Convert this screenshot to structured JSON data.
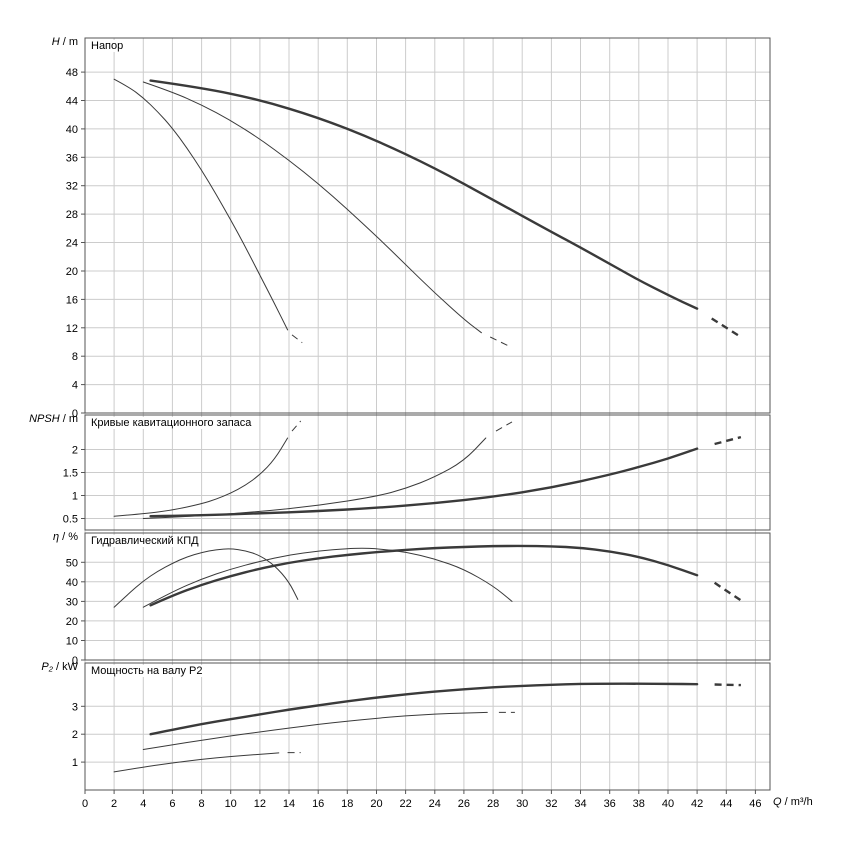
{
  "figure": {
    "background": "#ffffff",
    "grid_color": "#cccccc",
    "axis_color": "#555555",
    "curve_color": "#3a3a3a"
  },
  "xaxis": {
    "label": {
      "sym": "Q",
      "sep": " / ",
      "unit": "m³/h"
    },
    "xlim": [
      0,
      47
    ],
    "ticks": [
      0,
      2,
      4,
      6,
      8,
      10,
      12,
      14,
      16,
      18,
      20,
      22,
      24,
      26,
      28,
      30,
      32,
      34,
      36,
      38,
      40,
      42,
      44,
      46
    ]
  },
  "chart_data": [
    {
      "type": "line",
      "title": "Напор",
      "ylabel": {
        "sym": "H",
        "sep": " / ",
        "unit": "m"
      },
      "ylim": [
        0,
        52.8
      ],
      "yticks": [
        0,
        4,
        8,
        12,
        16,
        20,
        24,
        28,
        32,
        36,
        40,
        44,
        48
      ],
      "grid": true,
      "series": [
        {
          "name": "head-curve-1",
          "stroke_width": 1,
          "solid": [
            [
              2,
              47
            ],
            [
              3,
              45.9
            ],
            [
              4,
              44.4
            ],
            [
              5,
              42.4
            ],
            [
              6,
              40.1
            ],
            [
              7,
              37.3
            ],
            [
              8,
              34.2
            ],
            [
              9,
              30.8
            ],
            [
              10,
              27.2
            ],
            [
              11,
              23.4
            ],
            [
              12,
              19.4
            ],
            [
              13,
              15.4
            ],
            [
              13.9,
              11.7
            ]
          ],
          "dashed": [
            [
              14.2,
              11
            ],
            [
              14.9,
              9.9
            ]
          ]
        },
        {
          "name": "head-curve-2",
          "stroke_width": 1,
          "solid": [
            [
              4,
              46.6
            ],
            [
              6,
              45.2
            ],
            [
              8,
              43.4
            ],
            [
              10,
              41.2
            ],
            [
              12,
              38.6
            ],
            [
              14,
              35.6
            ],
            [
              16,
              32.3
            ],
            [
              18,
              28.7
            ],
            [
              20,
              24.9
            ],
            [
              22,
              20.9
            ],
            [
              24,
              16.9
            ],
            [
              26,
              13.2
            ],
            [
              27.2,
              11.3
            ]
          ],
          "dashed": [
            [
              27.8,
              10.7
            ],
            [
              29.2,
              9.3
            ]
          ]
        },
        {
          "name": "head-curve-3",
          "stroke_width": 2.4,
          "solid": [
            [
              4.5,
              46.8
            ],
            [
              8,
              45.8
            ],
            [
              12,
              44.1
            ],
            [
              16,
              41.6
            ],
            [
              20,
              38.4
            ],
            [
              24,
              34.5
            ],
            [
              28,
              30
            ],
            [
              32,
              25.5
            ],
            [
              34,
              23.3
            ],
            [
              36,
              21
            ],
            [
              38,
              18.7
            ],
            [
              40,
              16.6
            ],
            [
              42,
              14.7
            ]
          ],
          "dashed": [
            [
              43,
              13.3
            ],
            [
              45,
              10.7
            ]
          ]
        }
      ]
    },
    {
      "type": "line",
      "title": "Кривые кавитационного запаса",
      "ylabel": {
        "sym": "NPSH",
        "sep": " / ",
        "unit": "m"
      },
      "ylim": [
        0.25,
        2.75
      ],
      "yticks": [
        0.5,
        1,
        1.5,
        2
      ],
      "grid": true,
      "series": [
        {
          "name": "npsh-curve-1",
          "stroke_width": 1,
          "solid": [
            [
              2,
              0.55
            ],
            [
              4,
              0.6
            ],
            [
              6,
              0.68
            ],
            [
              8,
              0.82
            ],
            [
              9,
              0.92
            ],
            [
              10,
              1.05
            ],
            [
              11,
              1.22
            ],
            [
              12,
              1.45
            ],
            [
              13,
              1.78
            ],
            [
              13.9,
              2.25
            ]
          ],
          "dashed": [
            [
              14.2,
              2.4
            ],
            [
              14.8,
              2.62
            ]
          ]
        },
        {
          "name": "npsh-curve-2",
          "stroke_width": 1,
          "solid": [
            [
              4,
              0.5
            ],
            [
              8,
              0.56
            ],
            [
              12,
              0.65
            ],
            [
              16,
              0.78
            ],
            [
              20,
              0.98
            ],
            [
              22,
              1.15
            ],
            [
              24,
              1.4
            ],
            [
              26,
              1.75
            ],
            [
              27.5,
              2.25
            ]
          ],
          "dashed": [
            [
              28.2,
              2.4
            ],
            [
              29.3,
              2.6
            ]
          ]
        },
        {
          "name": "npsh-curve-3",
          "stroke_width": 2.4,
          "solid": [
            [
              4.5,
              0.55
            ],
            [
              8,
              0.57
            ],
            [
              12,
              0.61
            ],
            [
              16,
              0.66
            ],
            [
              20,
              0.73
            ],
            [
              24,
              0.83
            ],
            [
              28,
              0.97
            ],
            [
              32,
              1.17
            ],
            [
              36,
              1.45
            ],
            [
              38,
              1.62
            ],
            [
              40,
              1.8
            ],
            [
              42,
              2.02
            ]
          ],
          "dashed": [
            [
              43.2,
              2.12
            ],
            [
              45,
              2.27
            ]
          ]
        }
      ]
    },
    {
      "type": "line",
      "title": "Гидравлический КПД",
      "ylabel": {
        "sym": "η",
        "sep": " / ",
        "unit": "%"
      },
      "ylim": [
        0,
        65
      ],
      "yticks": [
        0,
        10,
        20,
        30,
        40,
        50
      ],
      "grid": true,
      "series": [
        {
          "name": "efficiency-curve-1",
          "stroke_width": 1,
          "solid": [
            [
              2,
              27
            ],
            [
              3,
              34
            ],
            [
              4,
              40.5
            ],
            [
              5,
              45.5
            ],
            [
              6,
              49.5
            ],
            [
              7,
              52.8
            ],
            [
              8,
              55
            ],
            [
              9,
              56.5
            ],
            [
              10,
              57
            ],
            [
              11,
              56
            ],
            [
              12,
              53.5
            ],
            [
              13,
              48.5
            ],
            [
              14,
              40
            ],
            [
              14.6,
              31
            ]
          ],
          "dashed": []
        },
        {
          "name": "efficiency-curve-2",
          "stroke_width": 1,
          "solid": [
            [
              4,
              27
            ],
            [
              6,
              35
            ],
            [
              8,
              41.5
            ],
            [
              10,
              46.5
            ],
            [
              12,
              50.5
            ],
            [
              14,
              53.8
            ],
            [
              16,
              55.8
            ],
            [
              18,
              57
            ],
            [
              19,
              57.2
            ],
            [
              20,
              57
            ],
            [
              22,
              55.3
            ],
            [
              24,
              51.8
            ],
            [
              26,
              46.5
            ],
            [
              28,
              38
            ],
            [
              29.3,
              30
            ]
          ],
          "dashed": []
        },
        {
          "name": "efficiency-curve-3",
          "stroke_width": 2.4,
          "solid": [
            [
              4.5,
              28
            ],
            [
              6,
              33
            ],
            [
              8,
              38.5
            ],
            [
              10,
              43
            ],
            [
              12,
              46.8
            ],
            [
              14,
              49.8
            ],
            [
              16,
              52
            ],
            [
              18,
              53.8
            ],
            [
              20,
              55.2
            ],
            [
              22,
              56.4
            ],
            [
              24,
              57.3
            ],
            [
              26,
              57.9
            ],
            [
              28,
              58.3
            ],
            [
              30,
              58.4
            ],
            [
              32,
              58.2
            ],
            [
              34,
              57.4
            ],
            [
              36,
              55.6
            ],
            [
              38,
              52.8
            ],
            [
              40,
              48.6
            ],
            [
              42,
              43.4
            ]
          ],
          "dashed": [
            [
              43.2,
              39.5
            ],
            [
              45,
              30.5
            ]
          ]
        }
      ]
    },
    {
      "type": "line",
      "title": "Мощность на валу P2",
      "ylabel": {
        "sym": "P₂",
        "sep": " / ",
        "unit": "kW"
      },
      "ylim": [
        0,
        4.55
      ],
      "yticks": [
        1,
        2,
        3
      ],
      "grid": true,
      "series": [
        {
          "name": "power-curve-1",
          "stroke_width": 1,
          "solid": [
            [
              2,
              0.65
            ],
            [
              4,
              0.82
            ],
            [
              6,
              0.97
            ],
            [
              8,
              1.1
            ],
            [
              10,
              1.2
            ],
            [
              12,
              1.28
            ],
            [
              13.3,
              1.33
            ]
          ],
          "dashed": [
            [
              13.9,
              1.34
            ],
            [
              14.8,
              1.34
            ]
          ]
        },
        {
          "name": "power-curve-2",
          "stroke_width": 1,
          "solid": [
            [
              4,
              1.45
            ],
            [
              6,
              1.62
            ],
            [
              8,
              1.78
            ],
            [
              10,
              1.94
            ],
            [
              12,
              2.08
            ],
            [
              14,
              2.22
            ],
            [
              16,
              2.35
            ],
            [
              18,
              2.47
            ],
            [
              20,
              2.57
            ],
            [
              22,
              2.66
            ],
            [
              24,
              2.72
            ],
            [
              26,
              2.76
            ],
            [
              27.6,
              2.78
            ]
          ],
          "dashed": [
            [
              28.4,
              2.78
            ],
            [
              29.5,
              2.78
            ]
          ]
        },
        {
          "name": "power-curve-3",
          "stroke_width": 2.4,
          "solid": [
            [
              4.5,
              2.0
            ],
            [
              6,
              2.16
            ],
            [
              8,
              2.36
            ],
            [
              10,
              2.54
            ],
            [
              12,
              2.71
            ],
            [
              14,
              2.88
            ],
            [
              16,
              3.03
            ],
            [
              18,
              3.18
            ],
            [
              20,
              3.31
            ],
            [
              22,
              3.43
            ],
            [
              24,
              3.53
            ],
            [
              26,
              3.61
            ],
            [
              28,
              3.68
            ],
            [
              30,
              3.73
            ],
            [
              32,
              3.77
            ],
            [
              34,
              3.8
            ],
            [
              36,
              3.81
            ],
            [
              38,
              3.81
            ],
            [
              40,
              3.8
            ],
            [
              42,
              3.79
            ]
          ],
          "dashed": [
            [
              43.2,
              3.78
            ],
            [
              45,
              3.76
            ]
          ]
        }
      ]
    }
  ]
}
